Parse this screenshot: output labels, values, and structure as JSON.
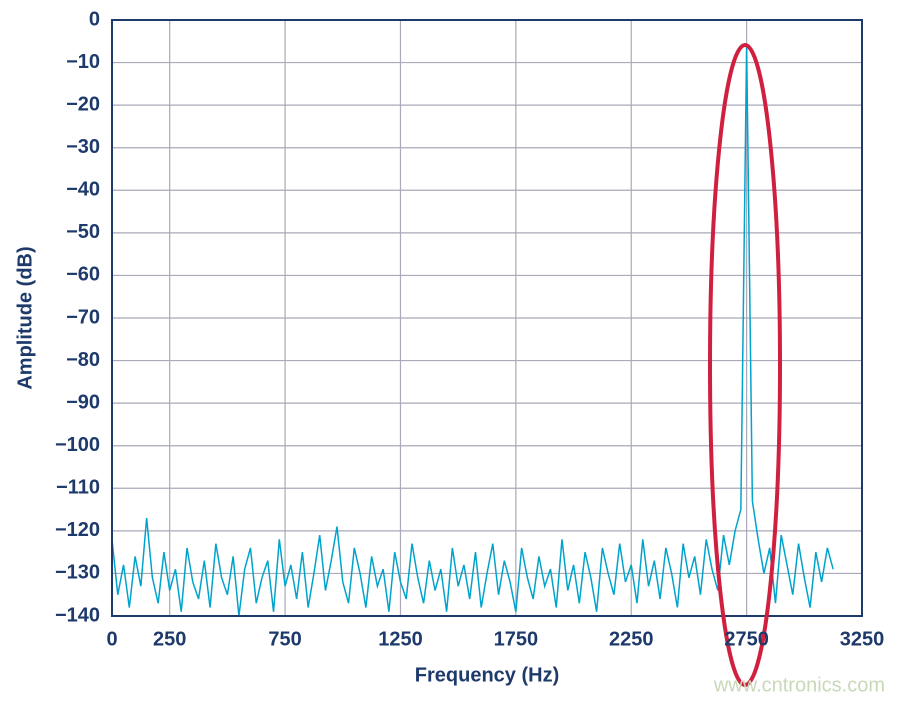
{
  "chart_data": {
    "type": "line",
    "x_label": "Frequency (Hz)",
    "y_label": "Amplitude (dB)",
    "color": "#00a3cc",
    "grid": true,
    "xlim": [
      0,
      3250
    ],
    "xticks": [
      0,
      250,
      750,
      1250,
      1750,
      2250,
      2750,
      3250
    ],
    "ylim": [
      -140,
      0
    ],
    "yticks": [
      0,
      {
        "value": -10,
        "label": "−10"
      },
      {
        "value": -20,
        "label": "−20"
      },
      {
        "value": -30,
        "label": "−30"
      },
      {
        "value": -40,
        "label": "−40"
      },
      {
        "value": -50,
        "label": "−50"
      },
      {
        "value": -60,
        "label": "−60"
      },
      {
        "value": -70,
        "label": "−70"
      },
      {
        "value": -80,
        "label": "−80"
      },
      {
        "value": -90,
        "label": "−90"
      },
      {
        "value": -100,
        "label": "−100"
      },
      {
        "value": -110,
        "label": "−110"
      },
      {
        "value": -120,
        "label": "−120"
      },
      {
        "value": -130,
        "label": "−130"
      },
      {
        "value": -140,
        "label": "−140"
      }
    ],
    "x": [
      0,
      25,
      50,
      75,
      100,
      125,
      150,
      175,
      200,
      225,
      250,
      275,
      300,
      325,
      350,
      375,
      400,
      425,
      450,
      475,
      500,
      525,
      550,
      575,
      600,
      625,
      650,
      675,
      700,
      725,
      750,
      775,
      800,
      825,
      850,
      875,
      900,
      925,
      950,
      975,
      1000,
      1025,
      1050,
      1075,
      1100,
      1125,
      1150,
      1175,
      1200,
      1225,
      1250,
      1275,
      1300,
      1325,
      1350,
      1375,
      1400,
      1425,
      1450,
      1475,
      1500,
      1525,
      1550,
      1575,
      1600,
      1625,
      1650,
      1675,
      1700,
      1725,
      1750,
      1775,
      1800,
      1825,
      1850,
      1875,
      1900,
      1925,
      1950,
      1975,
      2000,
      2025,
      2050,
      2075,
      2100,
      2125,
      2150,
      2175,
      2200,
      2225,
      2250,
      2275,
      2300,
      2325,
      2350,
      2375,
      2400,
      2425,
      2450,
      2475,
      2500,
      2525,
      2550,
      2575,
      2600,
      2625,
      2650,
      2675,
      2700,
      2725,
      2750,
      2775,
      2800,
      2825,
      2850,
      2875,
      2900,
      2925,
      2950,
      2975,
      3000,
      3025,
      3050,
      3075,
      3100,
      3125
    ],
    "values": [
      -122,
      -135,
      -128,
      -138,
      -126,
      -133,
      -117,
      -131,
      -137,
      -125,
      -134,
      -129,
      -139,
      -124,
      -132,
      -136,
      -127,
      -138,
      -123,
      -131,
      -135,
      -126,
      -140,
      -129,
      -124,
      -137,
      -131,
      -127,
      -139,
      -122,
      -133,
      -128,
      -136,
      -125,
      -138,
      -130,
      -121,
      -134,
      -127,
      -119,
      -132,
      -137,
      -124,
      -130,
      -138,
      -126,
      -133,
      -129,
      -139,
      -125,
      -132,
      -136,
      -123,
      -131,
      -137,
      -127,
      -134,
      -129,
      -139,
      -124,
      -133,
      -128,
      -136,
      -125,
      -138,
      -130,
      -123,
      -135,
      -127,
      -132,
      -139,
      -124,
      -131,
      -136,
      -126,
      -133,
      -129,
      -138,
      -122,
      -134,
      -128,
      -137,
      -125,
      -131,
      -139,
      -124,
      -130,
      -135,
      -123,
      -132,
      -128,
      -137,
      -122,
      -133,
      -127,
      -136,
      -124,
      -130,
      -138,
      -123,
      -131,
      -126,
      -135,
      -122,
      -129,
      -134,
      -121,
      -128,
      -120,
      -115,
      -6,
      -113,
      -122,
      -130,
      -124,
      -137,
      -121,
      -128,
      -135,
      -123,
      -131,
      -138,
      -125,
      -132,
      -124,
      -129
    ]
  },
  "watermark": "www.cntronics.com"
}
